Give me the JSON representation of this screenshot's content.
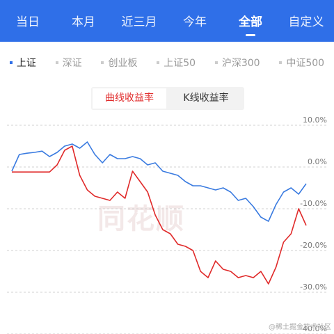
{
  "tabs": [
    "当日",
    "本月",
    "近三月",
    "今年",
    "全部",
    "自定义"
  ],
  "markets": [
    "上证",
    "深证",
    "创业板",
    "上证50",
    "沪深300",
    "中证500"
  ],
  "toggle": [
    "曲线收益率",
    "K线收益率"
  ],
  "watermark": "同花顺",
  "credit": "@稀土掘金技术社区",
  "chart_data": {
    "type": "line",
    "ylim": [
      -40,
      10
    ],
    "yticks": [
      {
        "value": 10,
        "label": "10.0%"
      },
      {
        "value": 0,
        "label": "0.0%"
      },
      {
        "value": -10,
        "label": "-10.0%"
      },
      {
        "value": -20,
        "label": "-20.0%"
      },
      {
        "value": -30,
        "label": "-30.0%"
      },
      {
        "value": -40,
        "label": "-40.0%"
      }
    ],
    "grid": true,
    "series": [
      {
        "color": "#3a7be0",
        "values": [
          -1,
          3,
          3.3,
          3.5,
          3.8,
          2.5,
          3.5,
          5,
          5.5,
          4.5,
          6,
          3,
          1,
          3,
          2,
          2,
          2.5,
          2,
          0.5,
          1,
          -1,
          -1.5,
          -2,
          -3.5,
          -4.5,
          -4.5,
          -5,
          -5.5,
          -5,
          -6,
          -8,
          -7.5,
          -9.5,
          -12,
          -13,
          -9,
          -6,
          -5,
          -6.5,
          -4
        ]
      },
      {
        "color": "#e02a2a",
        "values": [
          -1.2,
          -1.2,
          -1.2,
          -1.2,
          -1.2,
          -1.2,
          0.5,
          4,
          5,
          -2,
          -5.5,
          -7,
          -7.5,
          -8,
          -6,
          -7.5,
          -1,
          -3.5,
          -6,
          -11.5,
          -15,
          -16,
          -18.5,
          -19,
          -20,
          -25,
          -26.5,
          -22.5,
          -24.5,
          -25,
          -26.5,
          -26,
          -26.5,
          -25,
          -28,
          -24,
          -18,
          -16,
          -10,
          -14
        ]
      }
    ]
  }
}
